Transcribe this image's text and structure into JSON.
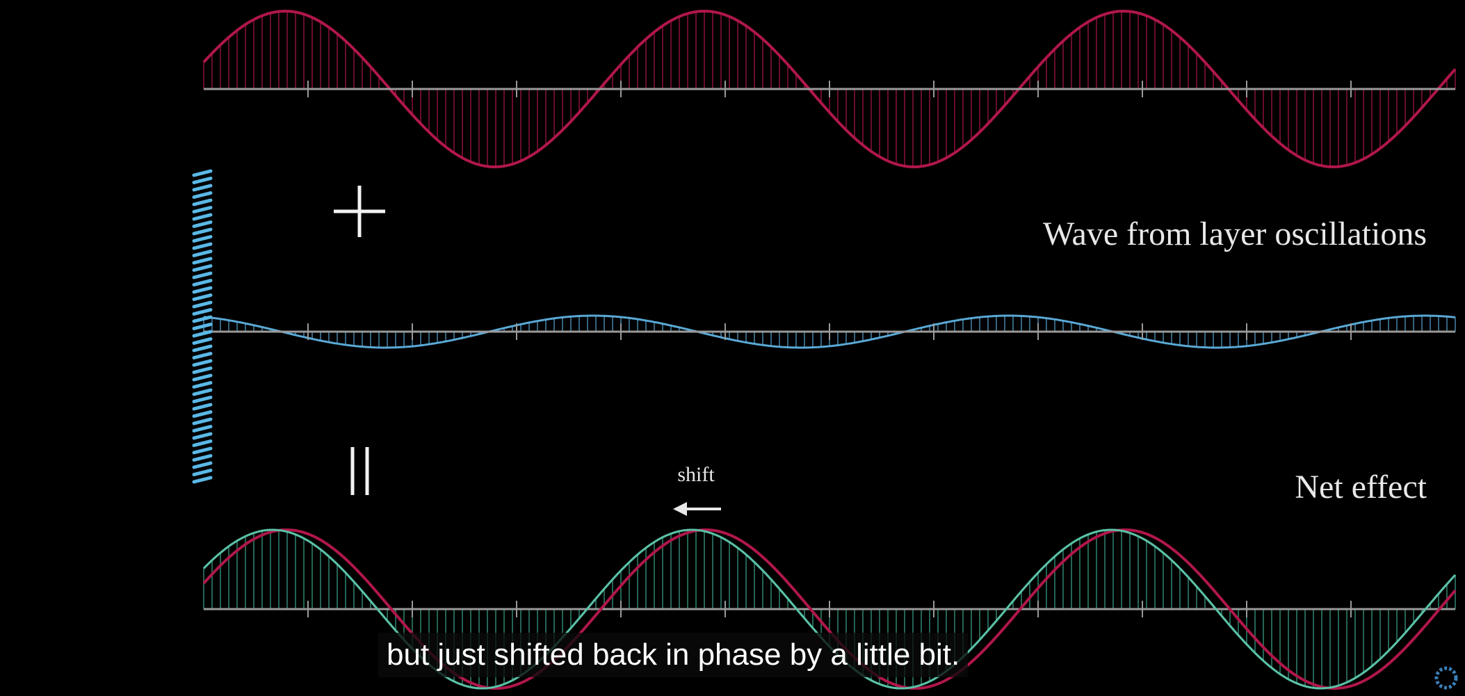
{
  "labels": {
    "wave": "Wave from layer oscillations",
    "net": "Net effect",
    "shift": "shift"
  },
  "subtitle": "but just shifted back in phase by a little bit."
}
